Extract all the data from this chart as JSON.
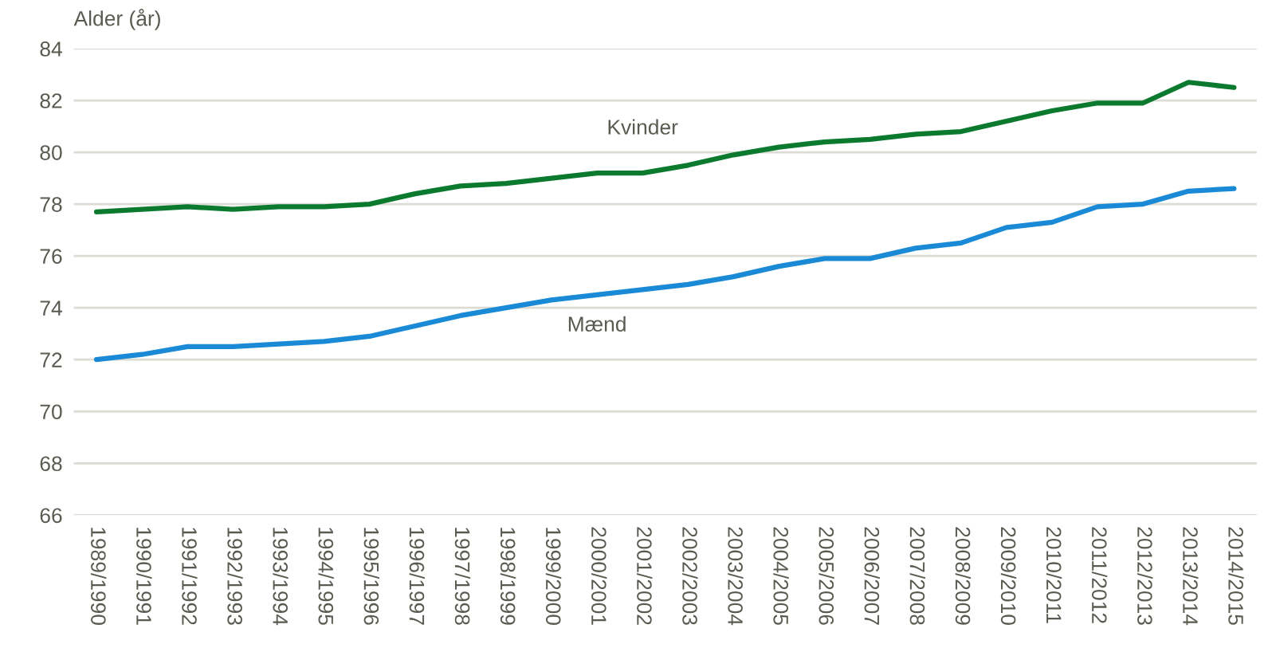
{
  "chart_data": {
    "type": "line",
    "ylabel": "Alder (år)",
    "categories": [
      "1989/1990",
      "1990/1991",
      "1991/1992",
      "1992/1993",
      "1993/1994",
      "1994/1995",
      "1995/1996",
      "1996/1997",
      "1997/1998",
      "1998/1999",
      "1999/2000",
      "2000/2001",
      "2001/2002",
      "2002/2003",
      "2003/2004",
      "2004/2005",
      "2005/2006",
      "2006/2007",
      "2007/2008",
      "2008/2009",
      "2009/2010",
      "2010/2011",
      "2011/2012",
      "2012/2013",
      "2013/2014",
      "2014/2015"
    ],
    "series": [
      {
        "name": "Kvinder",
        "color": "#0b7a2e",
        "values": [
          77.7,
          77.8,
          77.9,
          77.8,
          77.9,
          77.9,
          78.0,
          78.4,
          78.7,
          78.8,
          79.0,
          79.2,
          79.2,
          79.5,
          79.9,
          80.2,
          80.4,
          80.5,
          80.7,
          80.8,
          81.2,
          81.6,
          81.9,
          81.9,
          82.7,
          82.5
        ]
      },
      {
        "name": "Mænd",
        "color": "#1a8ad6",
        "values": [
          72.0,
          72.2,
          72.5,
          72.5,
          72.6,
          72.7,
          72.9,
          73.3,
          73.7,
          74.0,
          74.3,
          74.5,
          74.7,
          74.9,
          75.2,
          75.6,
          75.9,
          75.9,
          76.3,
          76.5,
          77.1,
          77.3,
          77.9,
          78.0,
          78.5,
          78.6
        ]
      }
    ],
    "ylim": [
      66,
      84
    ],
    "yticks": [
      66,
      68,
      70,
      72,
      74,
      76,
      78,
      80,
      82,
      84
    ],
    "grid": "y",
    "legend": false,
    "marker": "none",
    "line_style": "solid"
  }
}
